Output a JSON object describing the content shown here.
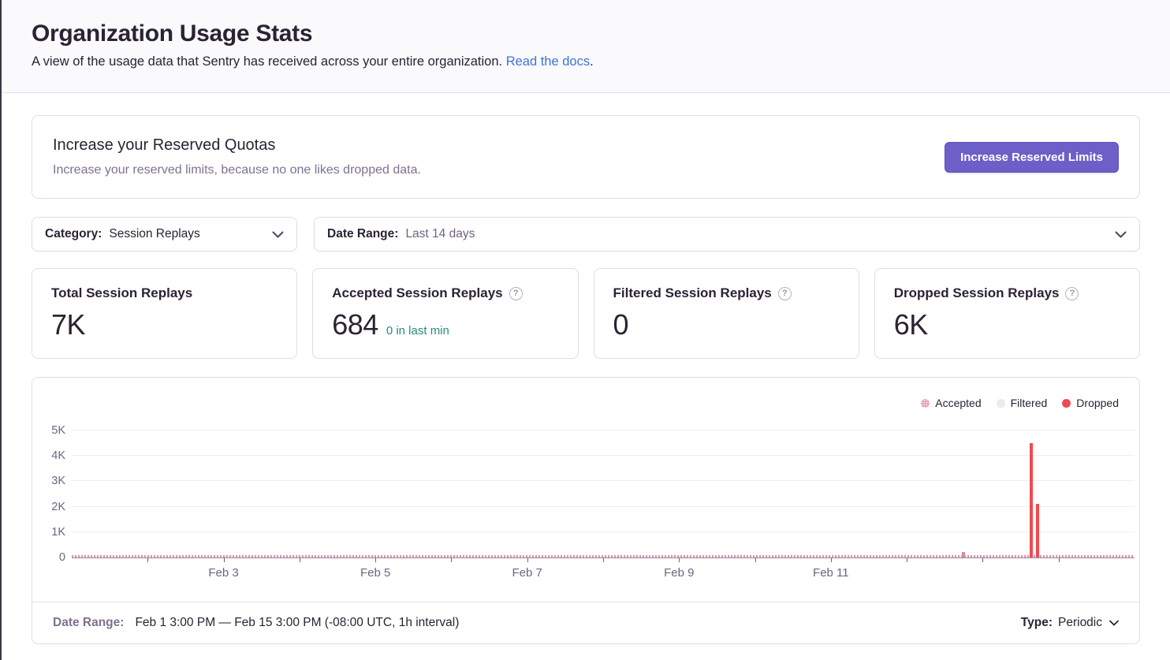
{
  "page": {
    "title": "Organization Usage Stats",
    "subtitle": "A view of the usage data that Sentry has received across your entire organization.",
    "subtitle_link": "Read the docs",
    "subtitle_period": "."
  },
  "quota_banner": {
    "title": "Increase your Reserved Quotas",
    "description": "Increase your reserved limits, because no one likes dropped data.",
    "button_label": "Increase Reserved Limits"
  },
  "filters": {
    "category": {
      "label": "Category:",
      "value": "Session Replays"
    },
    "date_range": {
      "label": "Date Range:",
      "value": "Last 14 days"
    }
  },
  "stat_cards": [
    {
      "title": "Total Session Replays",
      "value": "7K"
    },
    {
      "title": "Accepted Session Replays",
      "value": "684",
      "trend": "0 in last min",
      "help_icon": "?"
    },
    {
      "title": "Filtered Session Replays",
      "value": "0",
      "help_icon": "?"
    },
    {
      "title": "Dropped Session Replays",
      "value": "6K",
      "help_icon": "?"
    }
  ],
  "chart_footer": {
    "label": "Date Range:",
    "value": "Feb 1 3:00 PM — Feb 15 3:00 PM (-08:00 UTC, 1h interval)",
    "type_label": "Type:",
    "type_value": "Periodic"
  },
  "colors": {
    "accent_purple": "#6C5FC7",
    "link_blue": "#3D74DB",
    "trend_green": "#268D75",
    "accepted_pink": "#E0859F",
    "filtered_gray": "#EDE9F1",
    "dropped_red": "#F2494F"
  },
  "chart_data": {
    "type": "bar",
    "title": "",
    "legend": [
      {
        "name": "Accepted",
        "color": "#E0859F",
        "pattern": "dotted"
      },
      {
        "name": "Filtered",
        "color": "#EDE9F1",
        "pattern": "solid"
      },
      {
        "name": "Dropped",
        "color": "#F2494F",
        "pattern": "solid"
      }
    ],
    "legend_position": "top-right",
    "grid": true,
    "y_axis": {
      "max": 5000,
      "ticks": [
        {
          "label": "0",
          "value": 0
        },
        {
          "label": "1K",
          "value": 1000
        },
        {
          "label": "2K",
          "value": 2000
        },
        {
          "label": "3K",
          "value": 3000
        },
        {
          "label": "4K",
          "value": 4000
        },
        {
          "label": "5K",
          "value": 5000
        }
      ]
    },
    "x_axis": {
      "start": "Feb 1 3:00 PM",
      "end": "Feb 15 3:00 PM",
      "interval": "1h",
      "days_total": 14,
      "tick_every_days": 1,
      "labels": [
        {
          "label": "Feb 3",
          "day": 2
        },
        {
          "label": "Feb 5",
          "day": 4
        },
        {
          "label": "Feb 7",
          "day": 6
        },
        {
          "label": "Feb 9",
          "day": 8
        },
        {
          "label": "Feb 11",
          "day": 10
        }
      ]
    },
    "series": [
      {
        "name": "Accepted",
        "color": "#E0859F",
        "baseline_strip": true,
        "note": "tiny hourly bars near 0 across the entire 14-day range (total 684)",
        "bars": [
          {
            "date": "Feb 13",
            "day": 11.75,
            "value": 220
          }
        ]
      },
      {
        "name": "Filtered",
        "color": "#EDE9F1",
        "bars": []
      },
      {
        "name": "Dropped",
        "color": "#F2494F",
        "bars": [
          {
            "date": "Feb 14",
            "day": 12.64,
            "value": 4500
          },
          {
            "date": "Feb 14",
            "day": 12.72,
            "value": 2100
          }
        ]
      }
    ]
  }
}
